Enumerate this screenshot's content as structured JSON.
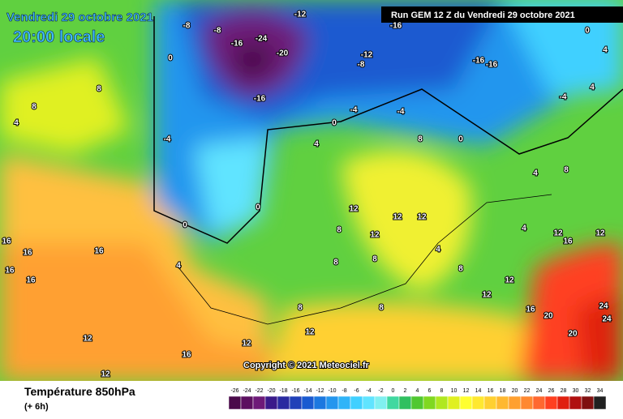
{
  "header": {
    "date": "Vendredi 29 octobre 2021",
    "local_time": "20:00 locale",
    "run": "Run GEM 12 Z du Vendredi 29 octobre 2021"
  },
  "copyright": "Copyright © 2021 Meteociel.fr",
  "footer": {
    "title": "Température 850hPa",
    "lead": "(+ 6h)"
  },
  "contour_labels": [
    -12,
    -8,
    -8,
    -16,
    -24,
    -20,
    -16,
    -12,
    -8,
    -16,
    -16,
    -16,
    0,
    0,
    4,
    4,
    8,
    8,
    4,
    -4,
    0,
    -4,
    -4,
    4,
    8,
    0,
    0,
    0,
    4,
    16,
    16,
    16,
    16,
    16,
    12,
    12,
    12,
    8,
    8,
    8,
    4,
    8,
    12,
    12,
    16,
    20,
    24,
    24,
    20,
    12,
    12,
    16,
    12,
    12,
    12,
    16,
    12,
    4,
    8,
    -4,
    4,
    8,
    8,
    12
  ],
  "colorbar": {
    "values": [
      -26,
      -24,
      -22,
      -20,
      -18,
      -16,
      -14,
      -12,
      -10,
      -8,
      -6,
      -4,
      -2,
      0,
      2,
      4,
      6,
      8,
      10,
      12,
      14,
      16,
      18,
      20,
      22,
      24,
      26,
      28,
      30,
      32,
      34
    ],
    "colors": [
      "#4a0a4a",
      "#5c1060",
      "#6e1a78",
      "#3a1a8a",
      "#2a2aa0",
      "#2040b8",
      "#1a5ad0",
      "#1c78e0",
      "#2496ee",
      "#30b4f8",
      "#40d0ff",
      "#60e4ff",
      "#80f0f0",
      "#40d8a0",
      "#30c060",
      "#50c830",
      "#80d820",
      "#b0e820",
      "#e0f020",
      "#ffff30",
      "#ffe830",
      "#ffd030",
      "#ffb830",
      "#ffa030",
      "#ff8830",
      "#ff6830",
      "#ff4020",
      "#e02010",
      "#b01010",
      "#801010",
      "#202020"
    ]
  }
}
